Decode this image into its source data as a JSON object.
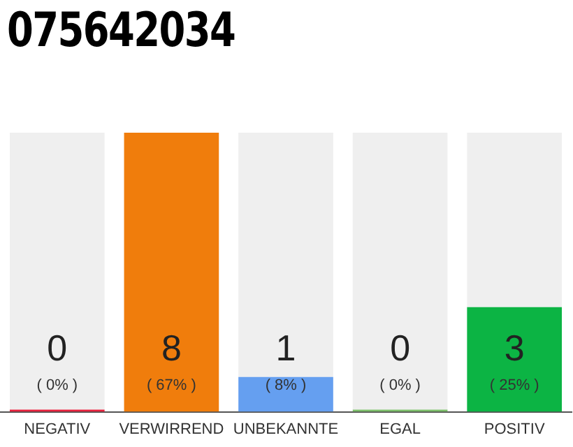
{
  "chart_data": {
    "type": "bar",
    "title": "075642034",
    "categories": [
      "NEGATIV",
      "VERWIRREND",
      "UNBEKANNTE",
      "EGAL",
      "POSITIV"
    ],
    "stacked": true,
    "series": [
      {
        "colors": [
          "#e8203c",
          "#f07d0c",
          "#659ff0",
          "#7dbf6a",
          "#0cb444"
        ],
        "values": [
          0,
          8,
          1,
          0,
          3
        ],
        "value_labels": [
          "0",
          "8",
          "1",
          "0",
          "3"
        ]
      },
      {
        "color": "#efefef",
        "values": [
          8,
          0,
          7,
          8,
          5
        ]
      }
    ],
    "ylim": [
      0,
      8
    ],
    "tick_labels": "x",
    "grid": false,
    "legend": false,
    "annotations": [
      "( 0% )",
      "( 67% )",
      "( 8% )",
      "( 0% )",
      "( 25% )"
    ]
  }
}
